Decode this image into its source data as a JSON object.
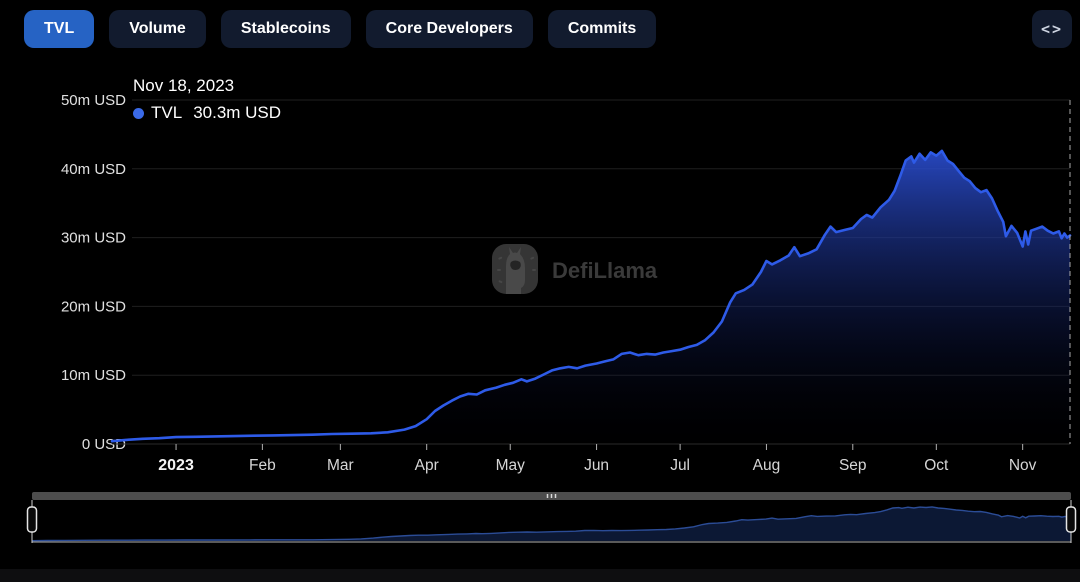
{
  "tabs": {
    "items": [
      {
        "label": "TVL",
        "active": true
      },
      {
        "label": "Volume",
        "active": false
      },
      {
        "label": "Stablecoins",
        "active": false
      },
      {
        "label": "Core Developers",
        "active": false
      },
      {
        "label": "Commits",
        "active": false
      }
    ],
    "embed_label": "<>"
  },
  "tooltip": {
    "date": "Nov 18, 2023",
    "series": "TVL",
    "value": "30.3m USD"
  },
  "watermark": {
    "text": "DefiLlama"
  },
  "colors": {
    "background": "#000000",
    "active_tab": "#2663c4",
    "inactive_tab": "#121b2e",
    "line": "#2e5be8",
    "tooltip_dot": "#3a6ae8",
    "area_top": "#2b4ed2",
    "grid": "#1f1f1f",
    "axis_label": "#e0e0e0",
    "crosshair": "#aaaaaa",
    "watermark": "#3e3e3e",
    "brush_bar": "#4d4d4d",
    "brush_fill": "#0c1834",
    "brush_line": "#2b4c96"
  },
  "chart_data": {
    "type": "area",
    "title": "TVL",
    "x_type": "time",
    "x_range": [
      "2022-12-09",
      "2023-11-18"
    ],
    "ylim": [
      0,
      50
    ],
    "y_unit": "m USD",
    "grid": true,
    "legend_position": "tooltip-top-left",
    "y_ticks": [
      {
        "value": 0,
        "label": "0 USD"
      },
      {
        "value": 10,
        "label": "10m USD"
      },
      {
        "value": 20,
        "label": "20m USD"
      },
      {
        "value": 30,
        "label": "30m USD"
      },
      {
        "value": 40,
        "label": "40m USD"
      },
      {
        "value": 50,
        "label": "50m USD"
      }
    ],
    "x_ticks": [
      {
        "date": "2023-01-01",
        "label": "2023",
        "bold": true
      },
      {
        "date": "2023-02-01",
        "label": "Feb",
        "bold": false
      },
      {
        "date": "2023-03-01",
        "label": "Mar",
        "bold": false
      },
      {
        "date": "2023-04-01",
        "label": "Apr",
        "bold": false
      },
      {
        "date": "2023-05-01",
        "label": "May",
        "bold": false
      },
      {
        "date": "2023-06-01",
        "label": "Jun",
        "bold": false
      },
      {
        "date": "2023-07-01",
        "label": "Jul",
        "bold": false
      },
      {
        "date": "2023-08-01",
        "label": "Aug",
        "bold": false
      },
      {
        "date": "2023-09-01",
        "label": "Sep",
        "bold": false
      },
      {
        "date": "2023-10-01",
        "label": "Oct",
        "bold": false
      },
      {
        "date": "2023-11-01",
        "label": "Nov",
        "bold": false
      }
    ],
    "crosshair_date": "2023-11-18",
    "series": [
      {
        "name": "TVL",
        "unit": "m USD",
        "points": [
          [
            "2022-12-09",
            0.4
          ],
          [
            "2022-12-14",
            0.6
          ],
          [
            "2022-12-20",
            0.75
          ],
          [
            "2022-12-26",
            0.85
          ],
          [
            "2023-01-01",
            1.0
          ],
          [
            "2023-01-08",
            1.05
          ],
          [
            "2023-01-15",
            1.1
          ],
          [
            "2023-01-22",
            1.15
          ],
          [
            "2023-01-29",
            1.2
          ],
          [
            "2023-02-05",
            1.25
          ],
          [
            "2023-02-12",
            1.3
          ],
          [
            "2023-02-19",
            1.35
          ],
          [
            "2023-02-26",
            1.45
          ],
          [
            "2023-03-05",
            1.5
          ],
          [
            "2023-03-12",
            1.55
          ],
          [
            "2023-03-18",
            1.7
          ],
          [
            "2023-03-24",
            2.1
          ],
          [
            "2023-03-28",
            2.6
          ],
          [
            "2023-04-01",
            3.6
          ],
          [
            "2023-04-04",
            4.8
          ],
          [
            "2023-04-07",
            5.6
          ],
          [
            "2023-04-10",
            6.3
          ],
          [
            "2023-04-13",
            6.9
          ],
          [
            "2023-04-16",
            7.3
          ],
          [
            "2023-04-19",
            7.2
          ],
          [
            "2023-04-22",
            7.8
          ],
          [
            "2023-04-26",
            8.2
          ],
          [
            "2023-04-29",
            8.6
          ],
          [
            "2023-05-02",
            8.9
          ],
          [
            "2023-05-05",
            9.4
          ],
          [
            "2023-05-07",
            9.1
          ],
          [
            "2023-05-10",
            9.5
          ],
          [
            "2023-05-13",
            10.1
          ],
          [
            "2023-05-16",
            10.7
          ],
          [
            "2023-05-19",
            11.0
          ],
          [
            "2023-05-22",
            11.2
          ],
          [
            "2023-05-25",
            11.0
          ],
          [
            "2023-05-28",
            11.4
          ],
          [
            "2023-06-01",
            11.7
          ],
          [
            "2023-06-04",
            12.0
          ],
          [
            "2023-06-07",
            12.3
          ],
          [
            "2023-06-10",
            13.1
          ],
          [
            "2023-06-13",
            13.3
          ],
          [
            "2023-06-16",
            12.9
          ],
          [
            "2023-06-19",
            13.1
          ],
          [
            "2023-06-22",
            13.0
          ],
          [
            "2023-06-25",
            13.3
          ],
          [
            "2023-06-28",
            13.5
          ],
          [
            "2023-07-01",
            13.7
          ],
          [
            "2023-07-04",
            14.1
          ],
          [
            "2023-07-07",
            14.4
          ],
          [
            "2023-07-10",
            15.1
          ],
          [
            "2023-07-13",
            16.2
          ],
          [
            "2023-07-16",
            17.8
          ],
          [
            "2023-07-19",
            20.6
          ],
          [
            "2023-07-21",
            21.9
          ],
          [
            "2023-07-24",
            22.4
          ],
          [
            "2023-07-27",
            23.2
          ],
          [
            "2023-07-30",
            25.0
          ],
          [
            "2023-08-01",
            26.6
          ],
          [
            "2023-08-03",
            26.1
          ],
          [
            "2023-08-06",
            26.7
          ],
          [
            "2023-08-09",
            27.4
          ],
          [
            "2023-08-11",
            28.6
          ],
          [
            "2023-08-13",
            27.3
          ],
          [
            "2023-08-16",
            27.7
          ],
          [
            "2023-08-19",
            28.3
          ],
          [
            "2023-08-22",
            30.4
          ],
          [
            "2023-08-24",
            31.6
          ],
          [
            "2023-08-26",
            30.8
          ],
          [
            "2023-08-29",
            31.1
          ],
          [
            "2023-09-01",
            31.4
          ],
          [
            "2023-09-04",
            32.7
          ],
          [
            "2023-09-06",
            33.3
          ],
          [
            "2023-09-08",
            32.9
          ],
          [
            "2023-09-11",
            34.4
          ],
          [
            "2023-09-14",
            35.5
          ],
          [
            "2023-09-16",
            36.8
          ],
          [
            "2023-09-18",
            38.9
          ],
          [
            "2023-09-20",
            41.2
          ],
          [
            "2023-09-22",
            41.8
          ],
          [
            "2023-09-23",
            40.9
          ],
          [
            "2023-09-25",
            42.2
          ],
          [
            "2023-09-27",
            41.3
          ],
          [
            "2023-09-29",
            42.4
          ],
          [
            "2023-10-01",
            41.9
          ],
          [
            "2023-10-03",
            42.6
          ],
          [
            "2023-10-05",
            41.2
          ],
          [
            "2023-10-07",
            40.7
          ],
          [
            "2023-10-09",
            39.7
          ],
          [
            "2023-10-11",
            38.7
          ],
          [
            "2023-10-13",
            38.2
          ],
          [
            "2023-10-15",
            37.2
          ],
          [
            "2023-10-17",
            36.6
          ],
          [
            "2023-10-19",
            36.9
          ],
          [
            "2023-10-21",
            35.7
          ],
          [
            "2023-10-23",
            33.9
          ],
          [
            "2023-10-25",
            32.3
          ],
          [
            "2023-10-26",
            30.2
          ],
          [
            "2023-10-28",
            31.7
          ],
          [
            "2023-10-30",
            30.7
          ],
          [
            "2023-11-01",
            28.7
          ],
          [
            "2023-11-02",
            30.9
          ],
          [
            "2023-11-03",
            29.0
          ],
          [
            "2023-11-04",
            31.0
          ],
          [
            "2023-11-06",
            31.3
          ],
          [
            "2023-11-08",
            31.6
          ],
          [
            "2023-11-10",
            31.0
          ],
          [
            "2023-11-12",
            30.6
          ],
          [
            "2023-11-14",
            30.9
          ],
          [
            "2023-11-15",
            29.9
          ],
          [
            "2023-11-16",
            30.6
          ],
          [
            "2023-11-17",
            30.0
          ],
          [
            "2023-11-18",
            30.3
          ]
        ]
      }
    ]
  },
  "brush": {
    "range_start": "2022-12-09",
    "range_end": "2023-11-18",
    "grip_glyph": "|||"
  }
}
